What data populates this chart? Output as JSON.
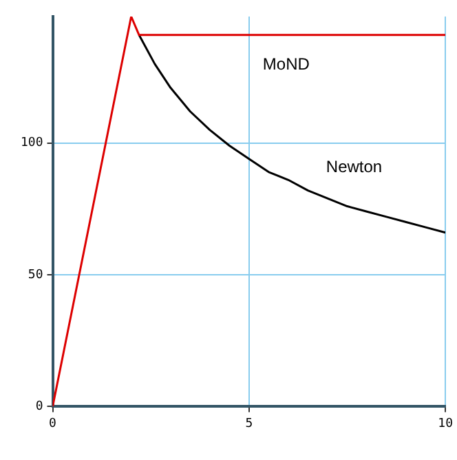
{
  "chart_data": {
    "type": "line",
    "xlim": [
      0,
      10
    ],
    "ylim": [
      0,
      148
    ],
    "xticks": [
      0,
      5,
      10
    ],
    "yticks": [
      0,
      50,
      100
    ],
    "grid": true,
    "legend": false,
    "marker": "none",
    "line_style": "solid",
    "series": [
      {
        "name": "MoND",
        "color": "#dd0000",
        "x": [
          0,
          2,
          2.2,
          10
        ],
        "values": [
          0,
          148,
          141,
          141
        ]
      },
      {
        "name": "Newton",
        "color": "#000000",
        "x": [
          2.2,
          2.6,
          3,
          3.5,
          4,
          4.5,
          5,
          5.5,
          6,
          6.5,
          7,
          7.5,
          8,
          8.5,
          9,
          9.5,
          10
        ],
        "values": [
          141,
          130,
          121,
          112,
          105,
          99,
          94,
          89,
          86,
          82,
          79,
          76,
          74,
          72,
          70,
          68,
          66
        ]
      }
    ]
  }
}
